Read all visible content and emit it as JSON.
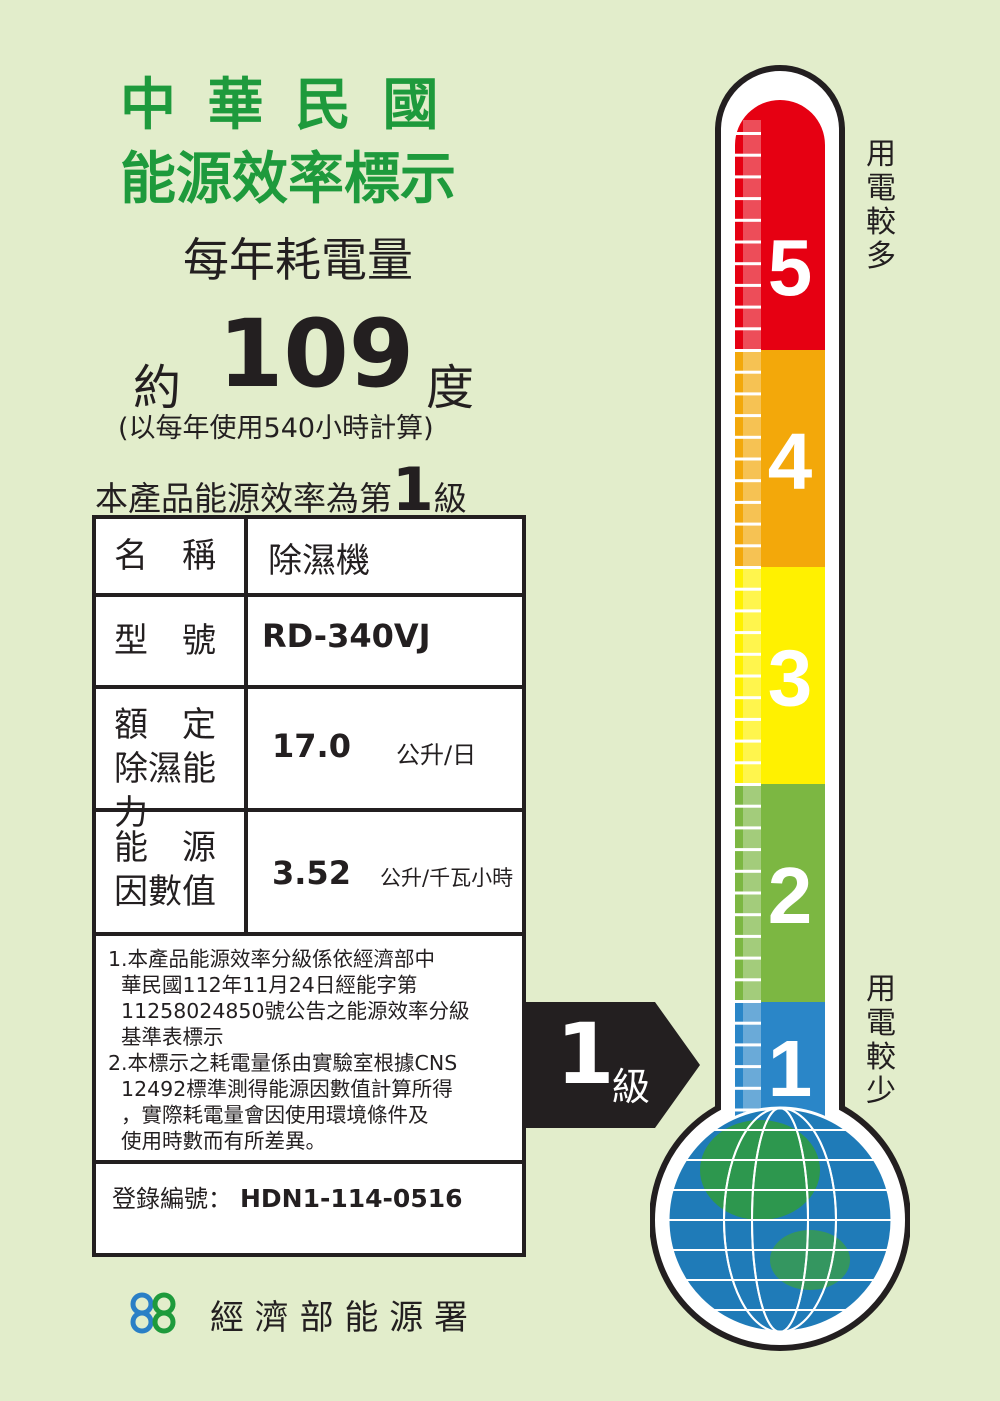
{
  "header": {
    "title_line1": "中 華 民 國",
    "title_line2": "能源效率標示",
    "subtitle": "每年耗電量"
  },
  "consumption": {
    "prefix": "約",
    "value": "109",
    "unit": "度",
    "note": "(以每年使用540小時計算)"
  },
  "grade_statement": {
    "before": "本產品能源效率為第",
    "grade": "1",
    "after": "級"
  },
  "table": {
    "name_label": "名　稱",
    "name_value": "除濕機",
    "model_label": "型　號",
    "model_value": "RD-340VJ",
    "capacity_label_1": "額　定",
    "capacity_label_2": "除濕能力",
    "capacity_value": "17.0",
    "capacity_unit": "公升/日",
    "factor_label_1": "能　源",
    "factor_label_2": "因數值",
    "factor_value": "3.52",
    "factor_unit": "公升/千瓦小時",
    "notes": "1.本產品能源效率分級係依經濟部中\n  華民國112年11月24日經能字第\n  11258024850號公告之能源效率分級\n  基準表標示\n2.本標示之耗電量係由實驗室根據CNS\n  12492標準測得能源因數值計算所得\n  ，實際耗電量會因使用環境條件及\n  使用時數而有所差異。",
    "registration_label": "登錄編號：",
    "registration_value": "HDN1-114-0516"
  },
  "indicator": {
    "grade": "1",
    "unit": "級"
  },
  "thermometer": {
    "levels": [
      {
        "label": "5",
        "color": "#e60012"
      },
      {
        "label": "4",
        "color": "#f3a80a"
      },
      {
        "label": "3",
        "color": "#fff100"
      },
      {
        "label": "2",
        "color": "#7cb742"
      },
      {
        "label": "1",
        "color": "#2a86c8"
      }
    ],
    "top_text": "用電較多",
    "bottom_text": "用電較少"
  },
  "footer": {
    "agency": "經 濟 部 能 源 署",
    "logo": "energy-administration-logo"
  }
}
